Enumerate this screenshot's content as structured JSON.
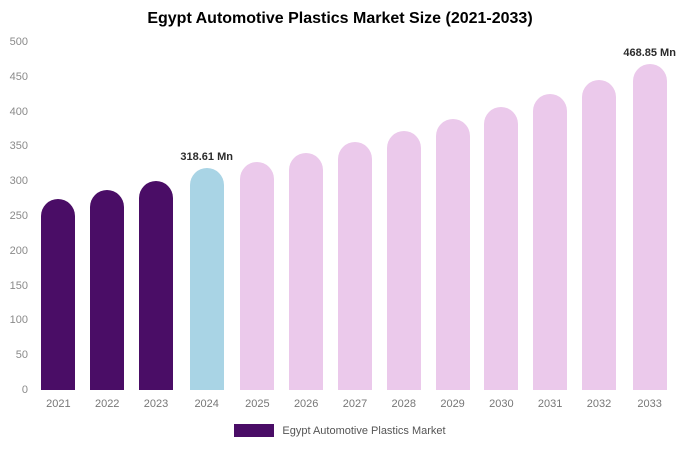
{
  "chart_data": {
    "type": "bar",
    "title": "Egypt Automotive Plastics Market Size (2021-2033)",
    "categories": [
      "2021",
      "2022",
      "2023",
      "2024",
      "2025",
      "2026",
      "2027",
      "2028",
      "2029",
      "2030",
      "2031",
      "2032",
      "2033"
    ],
    "values": [
      275,
      288,
      300,
      318.61,
      328,
      341,
      357,
      372,
      389,
      406,
      425,
      445,
      468.85
    ],
    "bar_colors": [
      "#4A0D66",
      "#4A0D66",
      "#4A0D66",
      "#A9D4E5",
      "#EBC9EB",
      "#EBC9EB",
      "#EBC9EB",
      "#EBC9EB",
      "#EBC9EB",
      "#EBC9EB",
      "#EBC9EB",
      "#EBC9EB",
      "#EBC9EB"
    ],
    "ylim": [
      0,
      500
    ],
    "yticks": [
      0,
      50,
      100,
      150,
      200,
      250,
      300,
      350,
      400,
      450,
      500
    ],
    "grid": false,
    "legend_position": "bottom",
    "annotations": [
      {
        "index": 3,
        "text": "318.61 Mn"
      },
      {
        "index": 12,
        "text": "468.85 Mn"
      }
    ],
    "legend": [
      {
        "label": "Egypt Automotive Plastics Market",
        "color": "#4A0D66"
      }
    ]
  }
}
